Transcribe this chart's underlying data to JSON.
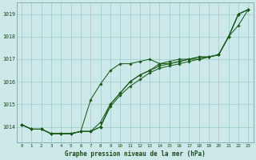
{
  "xlabel": "Graphe pression niveau de la mer (hPa)",
  "xlim": [
    -0.5,
    23.5
  ],
  "ylim": [
    1013.3,
    1019.5
  ],
  "yticks": [
    1014,
    1015,
    1016,
    1017,
    1018,
    1019
  ],
  "xticks": [
    0,
    1,
    2,
    3,
    4,
    5,
    6,
    7,
    8,
    9,
    10,
    11,
    12,
    13,
    14,
    15,
    16,
    17,
    18,
    19,
    20,
    21,
    22,
    23
  ],
  "bg_color": "#cce8e8",
  "grid_color": "#99cccc",
  "line_color": "#1a5c1a",
  "marker_color": "#1a5c1a",
  "series": [
    [
      1014.1,
      1013.9,
      1013.9,
      1013.7,
      1013.7,
      1013.7,
      1013.8,
      1013.8,
      1014.0,
      1014.9,
      1015.4,
      1015.8,
      1016.1,
      1016.4,
      1016.6,
      1016.7,
      1016.8,
      1016.9,
      1017.0,
      1017.1,
      1017.2,
      1018.0,
      1019.0,
      1019.2
    ],
    [
      1014.1,
      1013.9,
      1013.9,
      1013.7,
      1013.7,
      1013.7,
      1013.8,
      1015.2,
      1015.9,
      1016.5,
      1016.8,
      1016.8,
      1016.9,
      1017.0,
      1016.8,
      1016.9,
      1017.0,
      1017.0,
      1017.0,
      1017.1,
      1017.2,
      1018.0,
      1019.0,
      1019.2
    ],
    [
      1014.1,
      1013.9,
      1013.9,
      1013.7,
      1013.7,
      1013.7,
      1013.8,
      1013.8,
      1014.2,
      1015.0,
      1015.5,
      1016.0,
      1016.3,
      1016.5,
      1016.8,
      1016.8,
      1016.9,
      1017.0,
      1017.1,
      1017.1,
      1017.2,
      1018.0,
      1019.0,
      1019.2
    ],
    [
      1014.1,
      1013.9,
      1013.9,
      1013.7,
      1013.7,
      1013.7,
      1013.8,
      1013.8,
      1014.0,
      1015.0,
      1015.5,
      1016.0,
      1016.3,
      1016.5,
      1016.7,
      1016.8,
      1016.9,
      1017.0,
      1017.1,
      1017.1,
      1017.2,
      1018.0,
      1018.5,
      1019.2
    ]
  ]
}
